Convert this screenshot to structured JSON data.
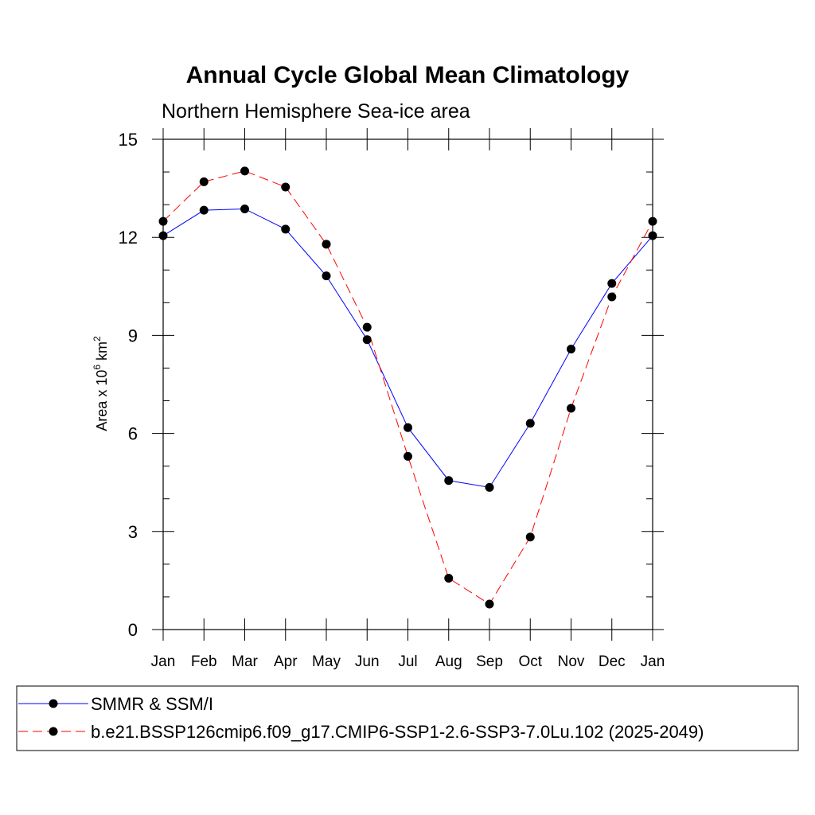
{
  "chart_data": {
    "type": "line",
    "title": "Annual Cycle Global Mean Climatology",
    "subtitle": "Northern Hemisphere Sea-ice area",
    "ylabel": {
      "prefix": "Area x 10",
      "exp1": "6",
      "mid": " km",
      "exp2": "2"
    },
    "xlabel": "",
    "categories": [
      "Jan",
      "Feb",
      "Mar",
      "Apr",
      "May",
      "Jun",
      "Jul",
      "Aug",
      "Sep",
      "Oct",
      "Nov",
      "Dec",
      "Jan"
    ],
    "ylim": [
      0,
      15
    ],
    "yticks": [
      0,
      3,
      6,
      9,
      12,
      15
    ],
    "y_tick_labels": [
      "0",
      "3",
      "6",
      "9",
      "12",
      "15"
    ],
    "y_minor_step": 1,
    "grid": false,
    "legend_position": "bottom",
    "series": [
      {
        "name": "SMMR & SSM/I",
        "color": "#0000ff",
        "line_style": "solid",
        "marker": "filled-circle",
        "values": [
          12.05,
          12.83,
          12.87,
          12.25,
          10.82,
          8.87,
          6.18,
          4.56,
          4.35,
          6.31,
          8.58,
          10.59,
          12.05
        ]
      },
      {
        "name": "b.e21.BSSP126cmip6.f09_g17.CMIP6-SSP1-2.6-SSP3-7.0Lu.102 (2025-2049)",
        "color": "#ff0000",
        "line_style": "dashed",
        "marker": "filled-circle",
        "values": [
          12.49,
          13.7,
          14.03,
          13.54,
          11.79,
          9.25,
          5.3,
          1.57,
          0.78,
          2.83,
          6.77,
          10.18,
          12.49
        ]
      }
    ]
  }
}
